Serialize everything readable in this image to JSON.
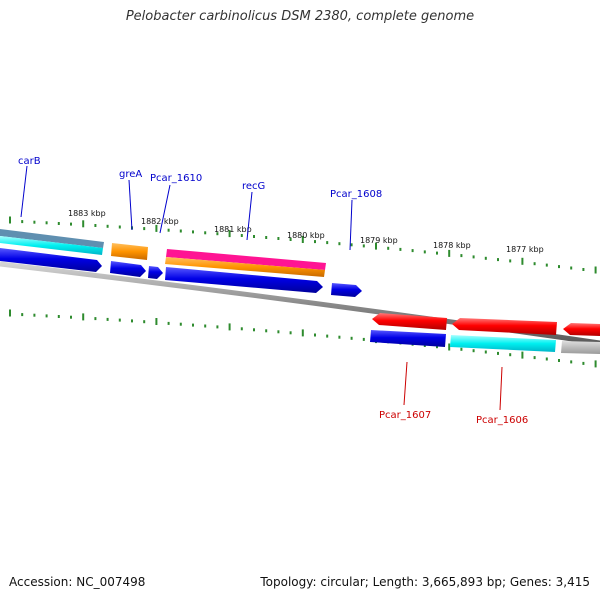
{
  "title": "Pelobacter carbinolicus DSM 2380, complete genome",
  "footer": {
    "accession": "Accession: NC_007498",
    "summary": "Topology: circular; Length: 3,665,893 bp; Genes: 3,415"
  },
  "colors": {
    "tick": "#2e8b2e",
    "backbone": "#8a8a8a",
    "forward_label": "#0000cc",
    "reverse_label": "#cc0000"
  },
  "chart_data": {
    "type": "genome_map",
    "title": "Pelobacter carbinolicus DSM 2380, complete genome",
    "scale_labels": [
      "1883 kbp",
      "1882 kbp",
      "1881 kbp",
      "1880 kbp",
      "1879 kbp",
      "1878 kbp",
      "1877 kbp"
    ],
    "forward_gene_labels": [
      "carB",
      "greA",
      "Pcar_1610",
      "recG",
      "Pcar_1608"
    ],
    "reverse_gene_labels": [
      "Pcar_1607",
      "Pcar_1606"
    ]
  }
}
